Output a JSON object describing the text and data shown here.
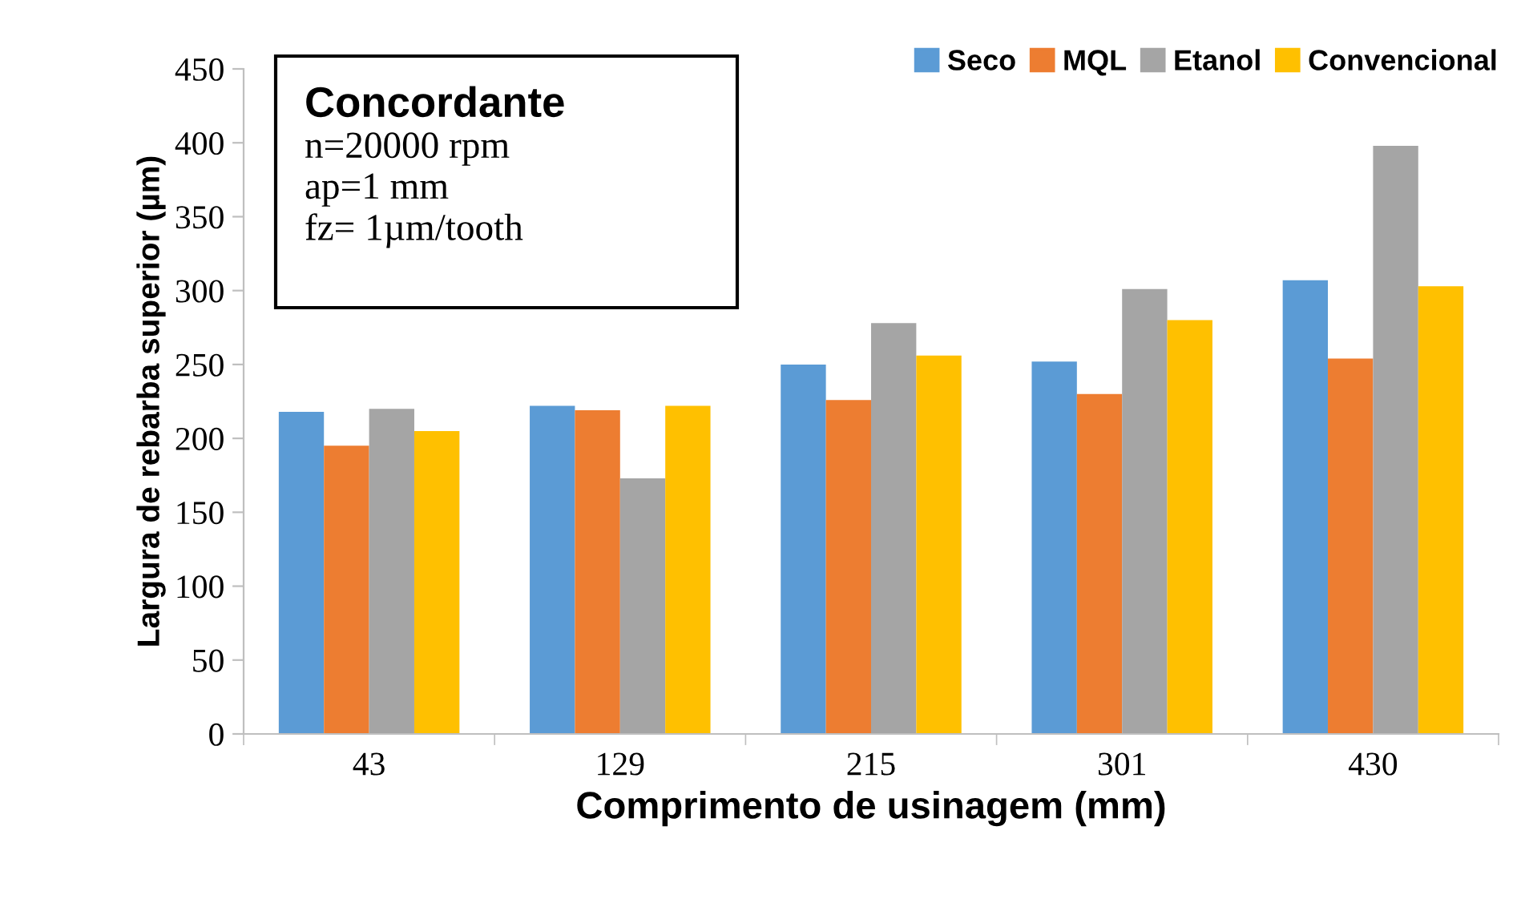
{
  "chart_data": {
    "type": "bar",
    "xlabel": "Comprimento de usinagem (mm)",
    "ylabel": "Largura de rebarba superior (µm)",
    "categories": [
      "43",
      "129",
      "215",
      "301",
      "430"
    ],
    "series": [
      {
        "name": "Seco",
        "color": "#5b9bd5",
        "values": [
          218,
          222,
          250,
          252,
          307
        ]
      },
      {
        "name": "MQL",
        "color": "#ed7d31",
        "values": [
          195,
          219,
          226,
          230,
          254
        ]
      },
      {
        "name": "Etanol",
        "color": "#a5a5a5",
        "values": [
          220,
          173,
          278,
          301,
          398
        ]
      },
      {
        "name": "Convencional",
        "color": "#ffc000",
        "values": [
          205,
          222,
          256,
          280,
          303
        ]
      }
    ],
    "ylim": [
      0,
      450
    ],
    "yticks": [
      0,
      50,
      100,
      150,
      200,
      250,
      300,
      350,
      400,
      450
    ],
    "legend": "top right",
    "grid": false,
    "annotations": [
      "Concordante",
      "n=20000 rpm\nap=1 mm\nfz= 1µm/tooth"
    ]
  }
}
